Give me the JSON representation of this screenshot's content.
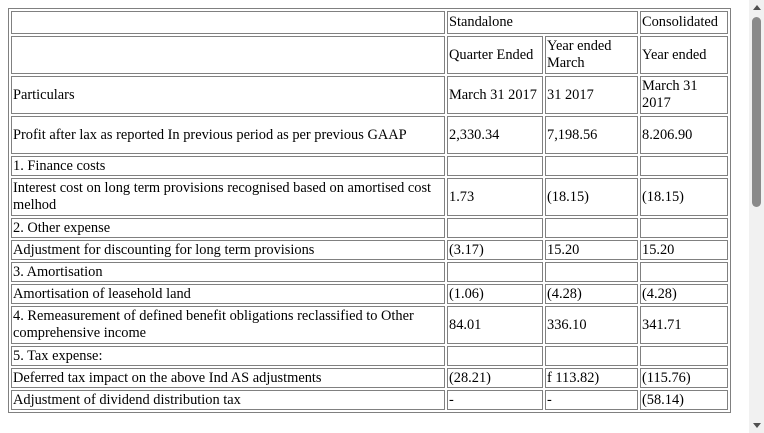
{
  "table": {
    "headers": {
      "standalone": "Standalone",
      "consolidated": "Consolidated",
      "quarter_ended": "Quarter Ended",
      "year_ended_standalone": "Year ended March",
      "year_ended_consolidated": "Year ended",
      "particulars": "Particulars",
      "period_quarter": "March 31 2017",
      "period_year_standalone": "31 2017",
      "period_year_consolidated": "March 31 2017"
    },
    "rows": [
      {
        "label": "Profit after lax as reported In previous period as per previous GAAP",
        "quarter": "2,330.34",
        "year_standalone": "7,198.56",
        "year_consolidated": "8.206.90"
      },
      {
        "label": "1. Finance costs",
        "quarter": "",
        "year_standalone": "",
        "year_consolidated": ""
      },
      {
        "label": "Interest cost on long term provisions recognised based on amortised cost melhod",
        "quarter": "1.73",
        "year_standalone": "(18.15)",
        "year_consolidated": "(18.15)"
      },
      {
        "label": "2. Other expense",
        "quarter": "",
        "year_standalone": "",
        "year_consolidated": ""
      },
      {
        "label": "Adjustment for discounting for long term provisions",
        "quarter": "(3.17)",
        "year_standalone": "15.20",
        "year_consolidated": "15.20"
      },
      {
        "label": "3. Amortisation",
        "quarter": "",
        "year_standalone": "",
        "year_consolidated": ""
      },
      {
        "label": "Amortisation of leasehold land",
        "quarter": "(1.06)",
        "year_standalone": "(4.28)",
        "year_consolidated": "(4.28)"
      },
      {
        "label": "4. Remeasurement of defined benefit obligations reclassified to Other comprehensive income",
        "quarter": "84.01",
        "year_standalone": "336.10",
        "year_consolidated": "341.71"
      },
      {
        "label": "5. Tax expense:",
        "quarter": "",
        "year_standalone": "",
        "year_consolidated": ""
      },
      {
        "label": "Deferred tax impact on the above Ind AS adjustments",
        "quarter": "(28.21)",
        "year_standalone": "f 113.82)",
        "year_consolidated": "(115.76)"
      },
      {
        "label": "Adjustment of dividend distribution tax",
        "quarter": "-",
        "year_standalone": "-",
        "year_consolidated": "(58.14)"
      }
    ]
  },
  "scrollbar": {
    "up_icon": "scroll-up-arrow-icon",
    "down_icon": "scroll-down-arrow-icon"
  }
}
